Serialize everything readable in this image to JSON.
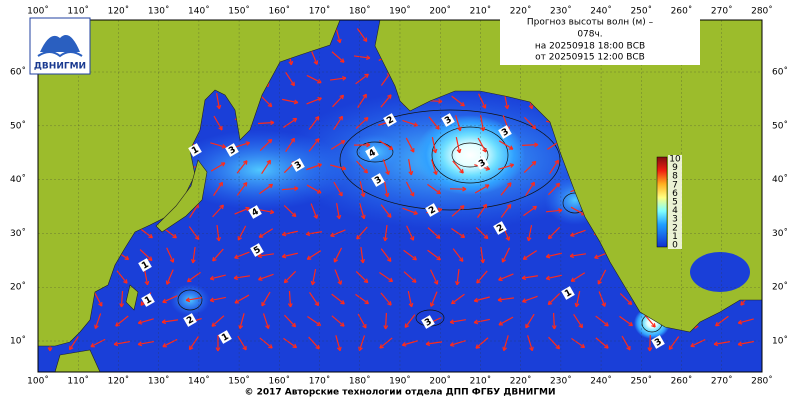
{
  "header": {
    "title": "Прогноз высоты волн (м) –",
    "lead": "078ч.",
    "valid": "на 20250918 18:00 ВСВ",
    "issued": "от 20250915 12:00 ВСВ"
  },
  "logo": "ДВНИГМИ",
  "map": {
    "lon_labels": [
      "100˚",
      "110˚",
      "120˚",
      "130˚",
      "140˚",
      "150˚",
      "160˚",
      "170˚",
      "180˚",
      "190˚",
      "200˚",
      "210˚",
      "220˚",
      "230˚",
      "240˚",
      "250˚",
      "260˚",
      "270˚",
      "280˚"
    ],
    "lat_labels": [
      "10˚",
      "20˚",
      "30˚",
      "40˚",
      "50˚",
      "60˚"
    ],
    "colorbar": [
      "0",
      "1",
      "2",
      "3",
      "4",
      "5",
      "6",
      "7",
      "8",
      "9",
      "10"
    ],
    "contour_labels": [
      "2",
      "3",
      "4",
      "3",
      "2",
      "2",
      "1",
      "3",
      "3",
      "4",
      "5",
      "1",
      "1",
      "2",
      "1",
      "3",
      "1",
      "3",
      "3",
      "3"
    ]
  },
  "footer": "© 2017 Авторские технологии отдела ДПП ФГБУ ДВНИГМИ"
}
